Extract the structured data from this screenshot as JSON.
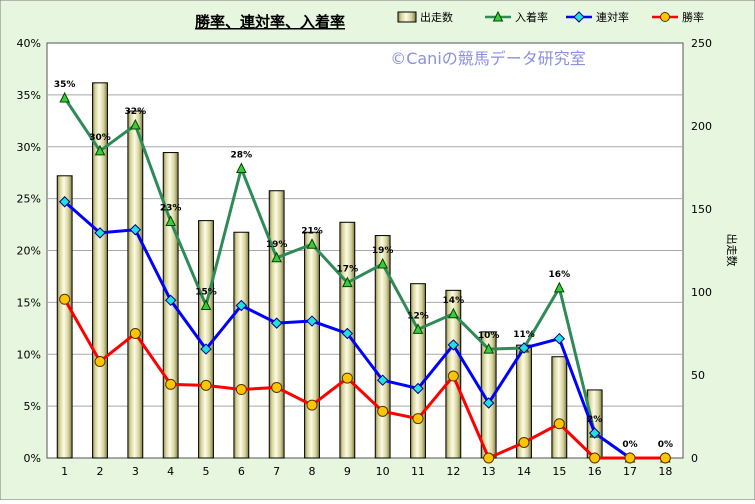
{
  "chart_data": {
    "type": "bar+line",
    "title": "勝率、連対率、入着率",
    "watermark": "©Caniの競馬データ研究室",
    "categories": [
      "1",
      "2",
      "3",
      "4",
      "5",
      "6",
      "7",
      "8",
      "9",
      "10",
      "11",
      "12",
      "13",
      "14",
      "15",
      "16",
      "17",
      "18"
    ],
    "y_left": {
      "min": 0,
      "max": 40,
      "step": 5,
      "unit": "%",
      "tick_labels": [
        "0%",
        "5%",
        "10%",
        "15%",
        "20%",
        "25%",
        "30%",
        "35%",
        "40%"
      ]
    },
    "y_right": {
      "min": 0,
      "max": 250,
      "step": 50,
      "label": "出走数",
      "tick_labels": [
        "0",
        "50",
        "100",
        "150",
        "200",
        "250"
      ]
    },
    "series": [
      {
        "name": "出走数",
        "type": "bar",
        "axis": "right",
        "values": [
          170,
          226,
          209,
          184,
          143,
          136,
          161,
          136,
          142,
          134,
          105,
          101,
          76,
          68,
          61,
          41,
          0,
          0
        ]
      },
      {
        "name": "入着率",
        "type": "line",
        "axis": "left",
        "color": "#2e8b57",
        "marker": "triangle",
        "values": [
          34.7,
          29.6,
          32.1,
          22.8,
          14.7,
          27.9,
          19.3,
          20.6,
          16.9,
          18.7,
          12.4,
          13.9,
          10.5,
          10.6,
          16.4,
          2.4,
          0,
          0
        ],
        "data_labels": [
          "35%",
          "30%",
          "32%",
          "23%",
          "15%",
          "28%",
          "19%",
          "21%",
          "17%",
          "19%",
          "12%",
          "14%",
          "10%",
          "11%",
          "16%",
          "2%",
          "0%",
          "0%"
        ]
      },
      {
        "name": "連対率",
        "type": "line",
        "axis": "left",
        "color": "#0000ff",
        "marker": "diamond",
        "values": [
          24.7,
          21.7,
          22.0,
          15.2,
          10.5,
          14.7,
          13.0,
          13.2,
          12.0,
          7.5,
          6.7,
          10.9,
          5.3,
          10.6,
          11.5,
          2.4,
          0,
          0
        ]
      },
      {
        "name": "勝率",
        "type": "line",
        "axis": "left",
        "color": "#ff0000",
        "marker": "circle",
        "values": [
          15.3,
          9.3,
          12.0,
          7.1,
          7.0,
          6.6,
          6.8,
          5.1,
          7.7,
          4.5,
          3.8,
          7.9,
          0,
          1.5,
          3.3,
          0,
          0,
          0
        ]
      }
    ],
    "legend": {
      "placement": "top-right",
      "order": [
        "出走数",
        "入着率",
        "連対率",
        "勝率"
      ]
    },
    "grid": {
      "horizontal": true,
      "vertical": false
    },
    "colors": {
      "plot_background": "#ffffff",
      "frame_background": "#e7f6df",
      "bar_fill": "#f2edc6",
      "grid": "#a9a9a9"
    }
  }
}
